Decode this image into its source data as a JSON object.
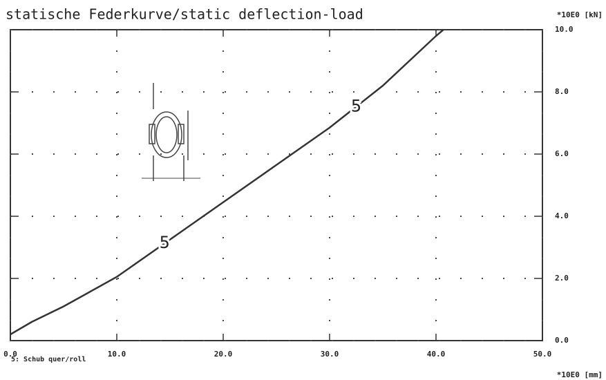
{
  "chart_data": {
    "type": "line",
    "title": "statische Federkurve/static deflection-load",
    "y_unit": "*10E0 [kN]",
    "x_unit": "*10E0 [mm]",
    "legend": "5: Schub quer/roll",
    "series": [
      {
        "name": "5",
        "color": "#333333",
        "x": [
          0,
          2,
          5,
          10,
          15,
          20,
          25,
          30,
          35,
          40,
          40.7
        ],
        "values": [
          0.2,
          0.6,
          1.1,
          2.05,
          3.25,
          4.45,
          5.65,
          6.85,
          8.2,
          9.8,
          10.0
        ]
      }
    ],
    "xlim": [
      0,
      50
    ],
    "xticks": [
      {
        "value": 0,
        "label": "0.0"
      },
      {
        "value": 10,
        "label": "10.0"
      },
      {
        "value": 20,
        "label": "20.0"
      },
      {
        "value": 30,
        "label": "30.0"
      },
      {
        "value": 40,
        "label": "40.0"
      },
      {
        "value": 50,
        "label": "50.0"
      }
    ],
    "ylim": [
      0,
      10
    ],
    "yticks": [
      {
        "value": 0,
        "label": "0.0"
      },
      {
        "value": 2,
        "label": "2.0"
      },
      {
        "value": 4,
        "label": "4.0"
      },
      {
        "value": 6,
        "label": "6.0"
      },
      {
        "value": 8,
        "label": "8.0"
      },
      {
        "value": 10,
        "label": "10.0"
      }
    ],
    "grid": true
  }
}
